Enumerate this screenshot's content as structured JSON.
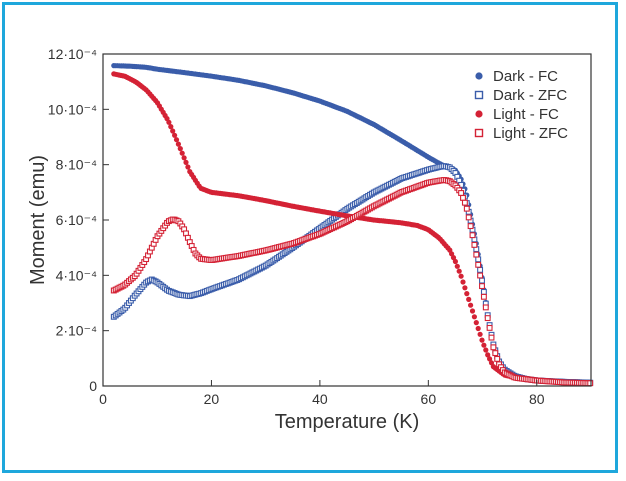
{
  "chart_data": {
    "type": "scatter",
    "xlabel": "Temperature (K)",
    "ylabel": "Moment (emu)",
    "xlim": [
      0,
      90
    ],
    "ylim": [
      0,
      0.0012
    ],
    "x_ticks": [
      0,
      20,
      40,
      60,
      80
    ],
    "x_tick_labels": [
      "0",
      "20",
      "40",
      "60",
      "80"
    ],
    "y_ticks": [
      0,
      0.0002,
      0.0004,
      0.0006,
      0.0008,
      0.001,
      0.0012
    ],
    "y_tick_labels": [
      "0",
      "2·10⁻⁴",
      "4·10⁻⁴",
      "6·10⁻⁴",
      "8·10⁻⁴",
      "10·10⁻⁴",
      "12·10⁻⁴"
    ],
    "grid": false,
    "legend_position": "top-right",
    "series": [
      {
        "name": "Dark - FC",
        "color": "#3a5daa",
        "marker": "filled-circle",
        "points": [
          [
            2,
            0.001158
          ],
          [
            5,
            0.001156
          ],
          [
            8,
            0.001152
          ],
          [
            10,
            0.001145
          ],
          [
            15,
            0.001133
          ],
          [
            20,
            0.00112
          ],
          [
            25,
            0.001105
          ],
          [
            30,
            0.001085
          ],
          [
            35,
            0.00106
          ],
          [
            40,
            0.00103
          ],
          [
            45,
            0.000993
          ],
          [
            50,
            0.000945
          ],
          [
            55,
            0.000887
          ],
          [
            60,
            0.000827
          ],
          [
            62,
            0.000805
          ],
          [
            63,
            0.000795
          ],
          [
            64,
            0.00079
          ],
          [
            65,
            0.00078
          ],
          [
            66,
            0.00075
          ],
          [
            67,
            0.0007
          ],
          [
            68,
            0.0006
          ],
          [
            69,
            0.0005
          ],
          [
            70,
            0.00038
          ],
          [
            71,
            0.00025
          ],
          [
            72,
            0.00015
          ],
          [
            73,
            9e-05
          ],
          [
            74,
            6e-05
          ],
          [
            76,
            3.8e-05
          ],
          [
            78,
            2.8e-05
          ],
          [
            80,
            2.2e-05
          ],
          [
            85,
            1.5e-05
          ],
          [
            90,
            1.2e-05
          ]
        ]
      },
      {
        "name": "Dark - ZFC",
        "color": "#3a5daa",
        "marker": "open-square",
        "points": [
          [
            2,
            0.00025
          ],
          [
            4,
            0.00028
          ],
          [
            6,
            0.00033
          ],
          [
            8,
            0.000375
          ],
          [
            9,
            0.000385
          ],
          [
            10,
            0.000375
          ],
          [
            12,
            0.000345
          ],
          [
            14,
            0.00033
          ],
          [
            16,
            0.000325
          ],
          [
            18,
            0.000335
          ],
          [
            20,
            0.00035
          ],
          [
            25,
            0.000385
          ],
          [
            30,
            0.000435
          ],
          [
            35,
            0.0005
          ],
          [
            40,
            0.00057
          ],
          [
            45,
            0.00064
          ],
          [
            50,
            0.0007
          ],
          [
            55,
            0.00075
          ],
          [
            60,
            0.000782
          ],
          [
            62,
            0.000792
          ],
          [
            63,
            0.000795
          ],
          [
            64,
            0.00079
          ],
          [
            65,
            0.00077
          ],
          [
            66,
            0.00073
          ],
          [
            67,
            0.00067
          ],
          [
            68,
            0.00058
          ],
          [
            69,
            0.00048
          ],
          [
            70,
            0.00037
          ],
          [
            71,
            0.00025
          ],
          [
            72,
            0.00015
          ],
          [
            73,
            9e-05
          ],
          [
            74,
            6e-05
          ],
          [
            76,
            3.5e-05
          ],
          [
            78,
            2.5e-05
          ],
          [
            80,
            2e-05
          ],
          [
            85,
            1.5e-05
          ],
          [
            90,
            1.2e-05
          ]
        ]
      },
      {
        "name": "Light - FC",
        "color": "#d42235",
        "marker": "filled-circle",
        "points": [
          [
            2,
            0.001128
          ],
          [
            4,
            0.00112
          ],
          [
            6,
            0.0011
          ],
          [
            8,
            0.00107
          ],
          [
            10,
            0.001025
          ],
          [
            12,
            0.00096
          ],
          [
            14,
            0.00087
          ],
          [
            16,
            0.000775
          ],
          [
            18,
            0.000715
          ],
          [
            20,
            0.0007
          ],
          [
            25,
            0.000688
          ],
          [
            30,
            0.00067
          ],
          [
            35,
            0.00065
          ],
          [
            40,
            0.000632
          ],
          [
            45,
            0.000615
          ],
          [
            50,
            0.0006
          ],
          [
            55,
            0.00059
          ],
          [
            58,
            0.00058
          ],
          [
            60,
            0.000565
          ],
          [
            62,
            0.000535
          ],
          [
            64,
            0.00049
          ],
          [
            65,
            0.00045
          ],
          [
            66,
            0.0004
          ],
          [
            67,
            0.00034
          ],
          [
            68,
            0.00028
          ],
          [
            69,
            0.00022
          ],
          [
            70,
            0.00016
          ],
          [
            71,
            0.00011
          ],
          [
            72,
            7e-05
          ],
          [
            74,
            4e-05
          ],
          [
            76,
            3e-05
          ],
          [
            80,
            2e-05
          ],
          [
            85,
            1.4e-05
          ],
          [
            90,
            1e-05
          ]
        ]
      },
      {
        "name": "Light - ZFC",
        "color": "#d42235",
        "marker": "open-square",
        "points": [
          [
            2,
            0.000345
          ],
          [
            4,
            0.000365
          ],
          [
            6,
            0.0004
          ],
          [
            8,
            0.00046
          ],
          [
            10,
            0.00054
          ],
          [
            12,
            0.000595
          ],
          [
            13,
            0.000603
          ],
          [
            14,
            0.000595
          ],
          [
            15,
            0.000565
          ],
          [
            16,
            0.00052
          ],
          [
            17,
            0.00048
          ],
          [
            18,
            0.00046
          ],
          [
            20,
            0.000455
          ],
          [
            25,
            0.00047
          ],
          [
            30,
            0.00049
          ],
          [
            35,
            0.000515
          ],
          [
            40,
            0.00055
          ],
          [
            45,
            0.000595
          ],
          [
            50,
            0.00065
          ],
          [
            55,
            0.0007
          ],
          [
            60,
            0.000735
          ],
          [
            62,
            0.000742
          ],
          [
            63,
            0.000745
          ],
          [
            64,
            0.00074
          ],
          [
            65,
            0.000725
          ],
          [
            66,
            0.0007
          ],
          [
            67,
            0.00065
          ],
          [
            68,
            0.00056
          ],
          [
            69,
            0.00046
          ],
          [
            70,
            0.00035
          ],
          [
            71,
            0.00024
          ],
          [
            72,
            0.00014
          ],
          [
            73,
            8e-05
          ],
          [
            74,
            5e-05
          ],
          [
            76,
            3e-05
          ],
          [
            80,
            2e-05
          ],
          [
            85,
            1.3e-05
          ],
          [
            90,
            1e-05
          ]
        ]
      }
    ]
  }
}
